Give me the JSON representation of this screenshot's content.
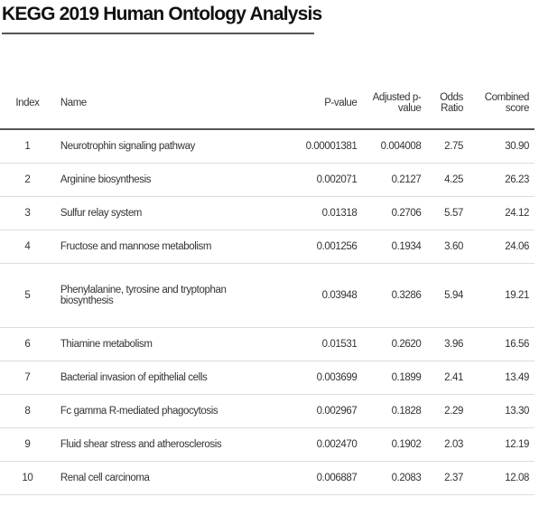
{
  "header": {
    "title": "KEGG 2019 Human Ontology Analysis"
  },
  "table": {
    "columns": [
      "Index",
      "Name",
      "P-value",
      "Adjusted p-value",
      "Odds Ratio",
      "Combined score"
    ],
    "rows": [
      [
        "1",
        "Neurotrophin signaling pathway",
        "0.00001381",
        "0.004008",
        "2.75",
        "30.90"
      ],
      [
        "2",
        "Arginine biosynthesis",
        "0.002071",
        "0.2127",
        "4.25",
        "26.23"
      ],
      [
        "3",
        "Sulfur relay system",
        "0.01318",
        "0.2706",
        "5.57",
        "24.12"
      ],
      [
        "4",
        "Fructose and mannose metabolism",
        "0.001256",
        "0.1934",
        "3.60",
        "24.06"
      ],
      [
        "5",
        "Phenylalanine, tyrosine and tryptophan biosynthesis",
        "0.03948",
        "0.3286",
        "5.94",
        "19.21"
      ],
      [
        "6",
        "Thiamine metabolism",
        "0.01531",
        "0.2620",
        "3.96",
        "16.56"
      ],
      [
        "7",
        "Bacterial invasion of epithelial cells",
        "0.003699",
        "0.1899",
        "2.41",
        "13.49"
      ],
      [
        "8",
        "Fc gamma R-mediated phagocytosis",
        "0.002967",
        "0.1828",
        "2.29",
        "13.30"
      ],
      [
        "9",
        "Fluid shear stress and atherosclerosis",
        "0.002470",
        "0.1902",
        "2.03",
        "12.19"
      ],
      [
        "10",
        "Renal cell carcinoma",
        "0.006887",
        "0.2083",
        "2.37",
        "12.08"
      ]
    ]
  }
}
